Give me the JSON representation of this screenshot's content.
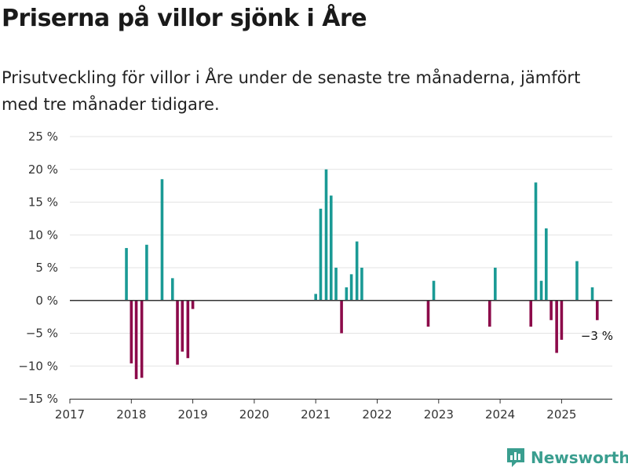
{
  "title": "Priserna på villor sjönk i Åre",
  "subtitle": "Prisutveckling för villor i Åre under de senaste tre månaderna, jämfört med tre månader tidigare.",
  "brand": "Newsworthy",
  "colors": {
    "positive": "#1a9a95",
    "negative": "#8c0a4a",
    "grid": "#e3e3e3",
    "axis": "#333333",
    "brand": "#3a9e8f"
  },
  "chart_data": {
    "type": "bar",
    "xlabel": "",
    "ylabel": "",
    "xlim": [
      2017,
      2026
    ],
    "ylim": [
      -15,
      25
    ],
    "yticks": [
      -15,
      -10,
      -5,
      0,
      5,
      10,
      15,
      20,
      25
    ],
    "ytick_labels": [
      "−15 %",
      "−10 %",
      "−5 %",
      "0 %",
      "5 %",
      "10 %",
      "15 %",
      "20 %",
      "25 %"
    ],
    "xticks": [
      2017,
      2018,
      2019,
      2020,
      2021,
      2022,
      2023,
      2024,
      2025
    ],
    "xtick_labels": [
      "2017",
      "2018",
      "2019",
      "2020",
      "2021",
      "2022",
      "2023",
      "2024",
      "2025"
    ],
    "annotation": {
      "text": "−3 %",
      "x": 2025.58,
      "y": -3
    },
    "points": [
      {
        "x": 2017.92,
        "y": 8
      },
      {
        "x": 2018.0,
        "y": -9.6
      },
      {
        "x": 2018.08,
        "y": -12
      },
      {
        "x": 2018.17,
        "y": -11.8
      },
      {
        "x": 2018.25,
        "y": 8.5
      },
      {
        "x": 2018.5,
        "y": 18.5
      },
      {
        "x": 2018.67,
        "y": 3.4
      },
      {
        "x": 2018.75,
        "y": -9.8
      },
      {
        "x": 2018.83,
        "y": -7.8
      },
      {
        "x": 2018.92,
        "y": -8.8
      },
      {
        "x": 2019.0,
        "y": -1.3
      },
      {
        "x": 2021.0,
        "y": 1
      },
      {
        "x": 2021.08,
        "y": 14
      },
      {
        "x": 2021.17,
        "y": 20
      },
      {
        "x": 2021.25,
        "y": 16
      },
      {
        "x": 2021.33,
        "y": 5
      },
      {
        "x": 2021.42,
        "y": -5
      },
      {
        "x": 2021.5,
        "y": 2
      },
      {
        "x": 2021.58,
        "y": 4
      },
      {
        "x": 2021.67,
        "y": 9
      },
      {
        "x": 2021.75,
        "y": 5
      },
      {
        "x": 2022.83,
        "y": -4
      },
      {
        "x": 2022.92,
        "y": 3
      },
      {
        "x": 2023.83,
        "y": -4
      },
      {
        "x": 2023.92,
        "y": 5
      },
      {
        "x": 2024.5,
        "y": -4
      },
      {
        "x": 2024.58,
        "y": 18
      },
      {
        "x": 2024.67,
        "y": 3
      },
      {
        "x": 2024.75,
        "y": 11
      },
      {
        "x": 2024.83,
        "y": -3
      },
      {
        "x": 2024.92,
        "y": -8
      },
      {
        "x": 2025.0,
        "y": -6
      },
      {
        "x": 2025.25,
        "y": 6
      },
      {
        "x": 2025.5,
        "y": 2
      },
      {
        "x": 2025.58,
        "y": -3
      }
    ]
  }
}
